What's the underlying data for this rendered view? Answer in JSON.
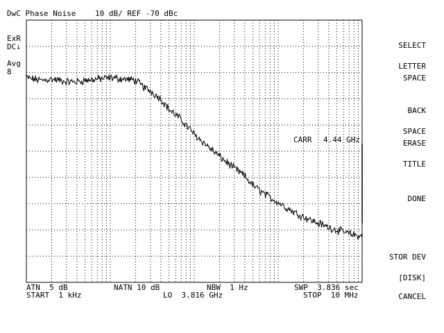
{
  "header": {
    "title": "DwC Phase Noise",
    "scale": "10 dB/ REF -70 dBc"
  },
  "left_annotations": {
    "exr": "ExR",
    "dc": "DC↓",
    "avg_label": "Avg",
    "avg_value": "8"
  },
  "marker": {
    "carr_label": "CARR",
    "carr_value": "4.44 GHz"
  },
  "footer": {
    "atn": "ATN  5 dB",
    "natn": "NATN 10 dB",
    "nbw": "NBW  1 Hz",
    "swp": "SWP  3.836 sec",
    "start": "START  1 kHz",
    "lo": "LO  3.816 GHz",
    "stop": "STOP  10 MHz"
  },
  "softkeys": [
    {
      "line1": "SELECT",
      "line2": "LETTER"
    },
    {
      "line1": "SPACE",
      "line2": ""
    },
    {
      "line1": "BACK",
      "line2": "SPACE"
    },
    {
      "line1": "ERASE",
      "line2": "TITLE"
    },
    {
      "line1": "DONE",
      "line2": ""
    },
    {
      "line1": "STOR DEV",
      "line2": "[DISK]"
    },
    {
      "line1": "CANCEL",
      "line2": ""
    }
  ],
  "chart_data": {
    "type": "line",
    "title": "DwC Phase Noise",
    "x_scale": "log",
    "x_start": "1 kHz",
    "x_stop": "10 MHz",
    "xlim": [
      1000,
      10000000
    ],
    "y_ref": -70,
    "y_scale_per_div": 10,
    "ylim": [
      -170,
      -70
    ],
    "grid": true,
    "series": [
      {
        "x": [
          1000,
          1500,
          2000,
          3000,
          4000,
          5000,
          7000,
          10000,
          15000,
          20000,
          25000,
          30000,
          40000,
          50000,
          70000,
          100000,
          150000,
          200000,
          300000,
          400000,
          500000,
          700000,
          1000000,
          1500000,
          2000000,
          3000000,
          4000000,
          5000000,
          7000000,
          10000000
        ],
        "values": [
          -92,
          -93,
          -92.5,
          -93.5,
          -93.5,
          -93,
          -92.5,
          -92,
          -92.5,
          -93,
          -95.5,
          -97,
          -100,
          -104,
          -108,
          -113.5,
          -118.5,
          -122,
          -126.5,
          -129.5,
          -133,
          -136.5,
          -139.5,
          -143,
          -145,
          -147.5,
          -149,
          -150,
          -151.5,
          -152.5
        ]
      }
    ]
  }
}
